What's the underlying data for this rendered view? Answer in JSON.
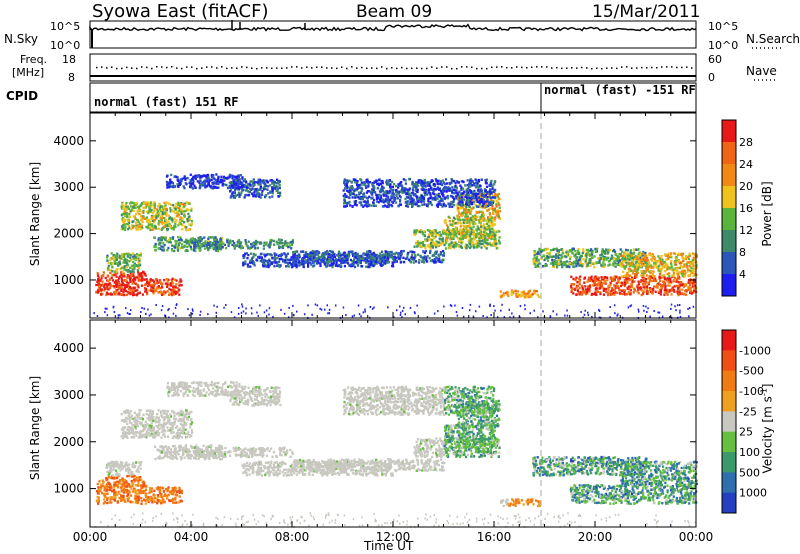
{
  "header": {
    "radar": "Syowa East (fitACF)",
    "beam": "Beam 09",
    "date": "15/Mar/2011"
  },
  "top_panels": {
    "nsky_label": "N.Sky",
    "nsearch_label": "N.Search",
    "noise_ticks": [
      "10^5",
      "10^0"
    ],
    "freq_label_top": "Freq.",
    "freq_label_unit": "[MHz]",
    "freq_ticks": [
      "18",
      "8"
    ],
    "nave_label": "Nave",
    "nave_ticks": [
      "60",
      "0"
    ],
    "cpid_label": "CPID",
    "cpid_segments": [
      "normal (fast) 151 RF",
      "normal (fast) -151 RF"
    ]
  },
  "chart_data": [
    {
      "type": "heatmap",
      "title": "",
      "xlabel": "",
      "ylabel": "Slant Range [km]",
      "x_ticks": [
        "00:00",
        "04:00",
        "08:00",
        "12:00",
        "16:00",
        "20:00",
        "00:00"
      ],
      "xlim": [
        0,
        24
      ],
      "y_ticks": [
        1000,
        2000,
        3000,
        4000
      ],
      "ylim": [
        180,
        4600
      ],
      "colorbar": {
        "label": "Power [dB]",
        "ticks": [
          "4",
          "8",
          "12",
          "16",
          "20",
          "24",
          "28"
        ],
        "colors": [
          "#1e1ef0",
          "#2b57b8",
          "#3c8a6a",
          "#58b43a",
          "#f0c21c",
          "#f08a14",
          "#f06414",
          "#e81818"
        ]
      }
    },
    {
      "type": "heatmap",
      "title": "",
      "xlabel": "Time UT",
      "ylabel": "Slant Range [km]",
      "x_ticks": [
        "00:00",
        "04:00",
        "08:00",
        "12:00",
        "16:00",
        "20:00",
        "00:00"
      ],
      "xlim": [
        0,
        24
      ],
      "y_ticks": [
        1000,
        2000,
        3000,
        4000
      ],
      "ylim": [
        180,
        4600
      ],
      "colorbar": {
        "label": "Velocity [m s",
        "label_sup": "-1",
        "label_end": "]",
        "ticks": [
          "1000",
          "500",
          "100",
          "25",
          "-25",
          "-100",
          "-500",
          "-1000"
        ],
        "colors": [
          "#2240c0",
          "#2f6fb0",
          "#3c9a6a",
          "#66c040",
          "#c8c8c0",
          "#f0a020",
          "#f07a14",
          "#f05014",
          "#e81818"
        ]
      }
    }
  ]
}
